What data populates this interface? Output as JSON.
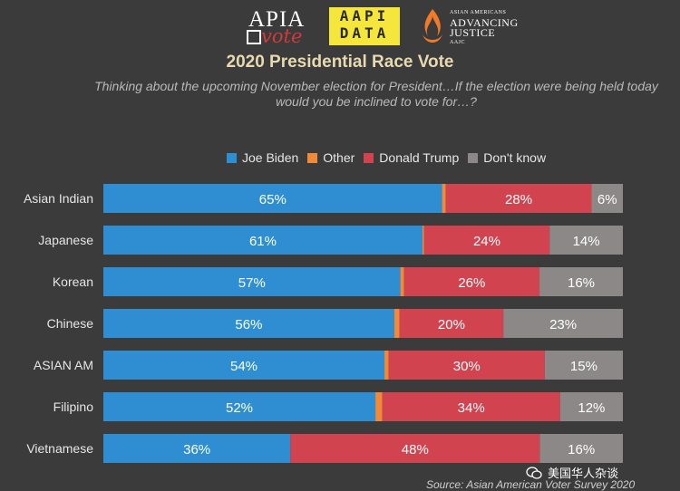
{
  "logos": {
    "apia": {
      "top": "APIA",
      "bottom": "vote"
    },
    "aapi": {
      "line1": "AAPI",
      "line2": "DATA"
    },
    "aajc": {
      "small1": "ASIAN AMERICANS",
      "line1": "ADVANCING",
      "line2": "JUSTICE",
      "small2": "AAJC"
    }
  },
  "colors": {
    "background": "#3b3b3b",
    "biden": "#2e8ed1",
    "other": "#ee8a3a",
    "trump": "#d1434f",
    "dontknow": "#8c8888"
  },
  "chart_data": {
    "type": "bar",
    "orientation": "horizontal",
    "stacked": true,
    "title": "2020 Presidential Race Vote",
    "subtitle": "Thinking about the upcoming November election for President…If the election were being held today would you be inclined to vote for…?",
    "legend_position": "top",
    "categories": [
      "Asian Indian",
      "Japanese",
      "Korean",
      "Chinese",
      "ASIAN AM",
      "Filipino",
      "Vietnamese"
    ],
    "series": [
      {
        "name": "Joe Biden",
        "color": "#2e8ed1",
        "values": [
          65,
          61,
          57,
          56,
          54,
          52,
          36
        ],
        "labels": [
          "65%",
          "61%",
          "57%",
          "56%",
          "54%",
          "52%",
          "36%"
        ]
      },
      {
        "name": "Other",
        "color": "#ee8a3a",
        "values": [
          0.7,
          0.3,
          0.7,
          1,
          0.8,
          1.3,
          0
        ],
        "labels": [
          "",
          "",
          "",
          "",
          "",
          "",
          ""
        ]
      },
      {
        "name": "Donald Trump",
        "color": "#d1434f",
        "values": [
          28,
          24,
          26,
          20,
          30,
          34,
          48
        ],
        "labels": [
          "28%",
          "24%",
          "26%",
          "20%",
          "30%",
          "34%",
          "48%"
        ]
      },
      {
        "name": "Don't know",
        "color": "#8c8888",
        "values": [
          6,
          14,
          16,
          23,
          15,
          12,
          16
        ],
        "labels": [
          "6%",
          "14%",
          "16%",
          "23%",
          "15%",
          "12%",
          "16%"
        ]
      }
    ]
  },
  "source": "Source: Asian American Voter Survey 2020",
  "watermark": "美国华人杂谈"
}
